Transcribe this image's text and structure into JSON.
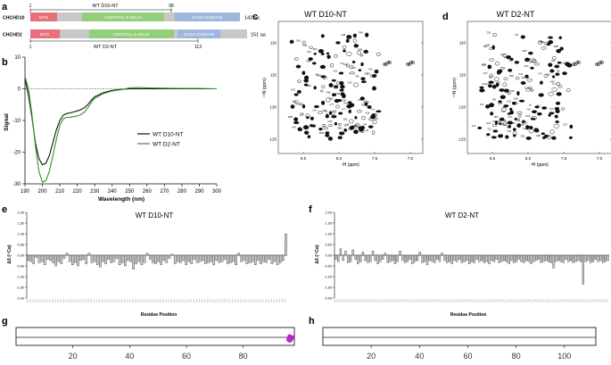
{
  "figure": {
    "panel_labels": [
      "a",
      "b",
      "c",
      "d",
      "e",
      "f",
      "g",
      "h"
    ]
  },
  "panel_a": {
    "top_label": "WT D10-NT",
    "top_start": "1",
    "top_end": "98",
    "bottom_label": "WT D2-NT",
    "bottom_start": "1",
    "bottom_end": "113",
    "proteins": [
      {
        "name": "CHCHD10",
        "length": "142 aa",
        "mts": "MTS",
        "helix": "CENTRAL α-HELIX",
        "domain": "CHCH DOMAIN"
      },
      {
        "name": "CHCHD2",
        "length": "151 aa",
        "mts": "MTS",
        "helix": "CENTRAL α HELIX",
        "domain": "CHCH DOMAIN"
      }
    ],
    "colors": {
      "mts": "#e8707a",
      "gray": "#c8c8c8",
      "helix": "#93cf7a",
      "domain": "#9db7dd"
    }
  },
  "panel_b": {
    "chart_data": {
      "type": "line",
      "xlabel": "Wavelength (nm)",
      "ylabel": "Signal",
      "xlim": [
        190,
        300
      ],
      "ylim": [
        -30,
        10
      ],
      "xticks": [
        "190",
        "200",
        "210",
        "220",
        "230",
        "240",
        "250",
        "260",
        "270",
        "280",
        "290",
        "300"
      ],
      "yticks": [
        "10",
        "0",
        "-10",
        "-20",
        "-30"
      ],
      "series": [
        {
          "name": "WT D10-NT",
          "color": "#111111",
          "x": [
            190,
            192,
            194,
            196,
            198,
            200,
            202,
            204,
            206,
            208,
            210,
            212,
            214,
            216,
            218,
            220,
            222,
            224,
            226,
            228,
            230,
            235,
            240,
            245,
            250,
            255,
            260,
            270,
            280,
            290,
            300
          ],
          "y": [
            3,
            -2,
            -9,
            -17,
            -22,
            -24,
            -23.5,
            -21,
            -17,
            -13,
            -10,
            -8.3,
            -7.8,
            -7.6,
            -7.3,
            -7,
            -6.6,
            -6,
            -5,
            -3.6,
            -2.5,
            -1.2,
            -0.5,
            -0.2,
            0,
            0,
            0,
            0,
            0,
            0,
            0
          ]
        },
        {
          "name": "WT D2-NT",
          "color": "#2e9a24",
          "x": [
            190,
            192,
            194,
            196,
            198,
            200,
            202,
            204,
            206,
            208,
            210,
            212,
            214,
            216,
            218,
            220,
            222,
            224,
            226,
            228,
            230,
            235,
            240,
            245,
            250,
            255,
            260,
            270,
            280,
            290,
            300
          ],
          "y": [
            4,
            0,
            -8,
            -18,
            -26,
            -29.5,
            -29,
            -26,
            -21,
            -16,
            -11.5,
            -9.5,
            -9,
            -9,
            -8.8,
            -8.6,
            -8.2,
            -7.4,
            -6,
            -4.4,
            -3,
            -1.5,
            -0.7,
            -0.3,
            0.3,
            0.4,
            0.3,
            0.2,
            0.1,
            0.1,
            0
          ]
        }
      ]
    }
  },
  "panel_c": {
    "title": "WT D10-NT",
    "xlabel": "¹H (ppm)",
    "ylabel": "¹⁵N (ppm)",
    "xticks": [
      "8.5",
      "8.0",
      "7.5",
      "7.0"
    ],
    "yticks": [
      "110",
      "115",
      "120",
      "125"
    ]
  },
  "panel_d": {
    "title": "WT D2-NT",
    "xlabel": "¹H (ppm)",
    "ylabel": "¹⁵N (ppm)",
    "xticks": [
      "8.5",
      "8.0",
      "7.5",
      "7.0"
    ],
    "yticks": [
      "110",
      "115",
      "120",
      "125"
    ]
  },
  "panel_e": {
    "title": "WT D10-NT",
    "chart_data": {
      "type": "bar",
      "xlabel": "Residue Position",
      "ylabel": "Δδ (¹³Cα)",
      "ylim": [
        -2,
        2
      ],
      "yticks": [
        "2.00",
        "1.50",
        "1.00",
        "0.50",
        "0.00",
        "-0.50",
        "-1.00",
        "-1.50",
        "-2.00"
      ],
      "values": [
        -0.25,
        -0.3,
        -0.4,
        -0.1,
        -0.35,
        -0.3,
        -0.45,
        -0.2,
        -0.25,
        -0.35,
        -0.5,
        -0.3,
        -0.4,
        -0.15,
        0.1,
        -0.3,
        -0.45,
        -0.35,
        -0.5,
        -0.25,
        -0.2,
        -0.4,
        0.1,
        -0.35,
        -0.3,
        -0.45,
        -0.55,
        -0.3,
        -0.4,
        -0.2,
        -0.35,
        -0.3,
        -0.15,
        -0.45,
        -0.35,
        -0.5,
        -0.25,
        -0.3,
        -0.65,
        -0.4,
        -0.3,
        -0.45,
        -0.35,
        0.1,
        -0.2,
        -0.35,
        -0.4,
        -0.3,
        -0.45,
        -0.25,
        -0.35,
        -0.15,
        0.05,
        -0.4,
        -0.3,
        -0.35,
        -0.25,
        -0.45,
        -0.3,
        -0.4,
        -0.2,
        -0.35,
        -0.3,
        -0.25,
        -0.4,
        -0.35,
        -0.3,
        -0.45,
        -0.25,
        -0.35,
        -0.3,
        -0.2,
        -0.4,
        -0.35,
        -0.3,
        -0.45,
        0.1,
        -0.3,
        -0.25,
        -0.4,
        -0.35,
        -0.3,
        -0.45,
        -0.25,
        -0.4,
        -0.3,
        -0.35,
        -0.2,
        -0.4,
        -0.3,
        -0.45,
        -0.35,
        -0.25,
        1.0
      ]
    }
  },
  "panel_f": {
    "title": "WT D2-NT",
    "chart_data": {
      "type": "bar",
      "xlabel": "Residue Position",
      "ylabel": "Δδ (¹³Cα)",
      "ylim": [
        -2,
        2
      ],
      "yticks": [
        "2.00",
        "1.50",
        "1.00",
        "0.50",
        "0.00",
        "-0.50",
        "-1.00",
        "-1.50",
        "-2.00"
      ],
      "values": [
        -0.2,
        -0.3,
        0.3,
        -0.25,
        0.2,
        -0.35,
        -0.3,
        0.25,
        -0.2,
        -0.4,
        -0.3,
        0.15,
        -0.25,
        -0.35,
        -0.3,
        0.2,
        -0.25,
        -0.4,
        -0.3,
        -0.2,
        0.1,
        -0.35,
        -0.3,
        -0.25,
        -0.4,
        -0.3,
        0.2,
        -0.25,
        -0.35,
        -0.3,
        -0.2,
        -0.4,
        -0.3,
        -0.25,
        0.15,
        -0.35,
        -0.3,
        -0.45,
        -0.25,
        -0.3,
        -0.35,
        -0.2,
        -0.3,
        0.1,
        -0.25,
        -0.35,
        -0.3,
        -0.4,
        -0.25,
        -0.3,
        -0.2,
        -0.35,
        -0.3,
        -0.25,
        -0.4,
        -0.3,
        -0.35,
        -0.2,
        -0.3,
        -0.25,
        -0.35,
        -0.3,
        -0.4,
        -0.25,
        -0.3,
        -0.2,
        -0.35,
        -0.3,
        -0.25,
        -0.3,
        -0.4,
        -0.25,
        -0.35,
        -0.3,
        -0.2,
        -0.3,
        -0.35,
        -0.25,
        -0.3,
        -0.4,
        -0.3,
        -0.25,
        -0.2,
        -0.35,
        -0.3,
        -0.25,
        -0.3,
        -0.35,
        -0.6,
        -0.3,
        -0.25,
        -0.3,
        -0.35,
        -0.2,
        -0.3,
        -0.25,
        -0.35,
        -0.3,
        -0.25,
        -0.3,
        -1.35,
        -0.3,
        -0.25,
        -0.35,
        -0.3,
        -0.2,
        -0.3,
        -0.25,
        -0.35,
        -0.3,
        -0.25
      ]
    }
  },
  "panel_g": {
    "xticks": [
      "20",
      "40",
      "60",
      "80"
    ],
    "xmax": 98
  },
  "panel_h": {
    "xticks": [
      "20",
      "40",
      "60",
      "80",
      "100"
    ],
    "xmax": 113
  }
}
